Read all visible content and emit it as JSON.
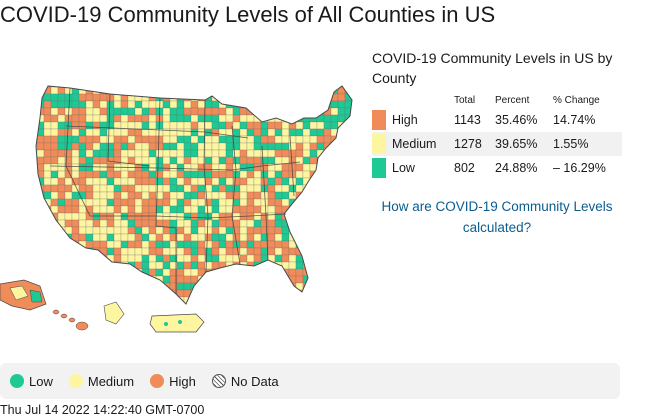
{
  "title": "COVID-19 Community Levels of All Counties in US",
  "summary": {
    "title": "COVID-19 Community Levels in US by County",
    "headers": {
      "total": "Total",
      "percent": "Percent",
      "change": "% Change"
    },
    "rows": [
      {
        "label": "High",
        "total": "1143",
        "percent": "35.46%",
        "change": "14.74%",
        "color": "#f08b5a"
      },
      {
        "label": "Medium",
        "total": "1278",
        "percent": "39.65%",
        "change": "1.55%",
        "color": "#fdf5a0"
      },
      {
        "label": "Low",
        "total": "802",
        "percent": "24.88%",
        "change": "– 16.29%",
        "color": "#1ec994"
      }
    ]
  },
  "link": "How are COVID-19 Community Levels calculated?",
  "legend": {
    "low": "Low",
    "medium": "Medium",
    "high": "High",
    "nodata": "No Data",
    "colors": {
      "low": "#1ec994",
      "medium": "#fdf5a0",
      "high": "#f08b5a"
    }
  },
  "timestamp": "Thu Jul 14 2022 14:22:40 GMT-0700"
}
